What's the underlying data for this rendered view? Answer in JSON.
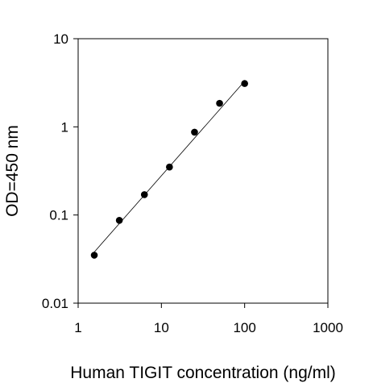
{
  "chart_data": {
    "type": "scatter",
    "title": "",
    "xlabel": "Human TIGIT concentration (ng/ml)",
    "ylabel": "OD=450 nm",
    "xscale": "log",
    "yscale": "log",
    "xlim": [
      1,
      1000
    ],
    "ylim": [
      0.01,
      10
    ],
    "x_ticks": [
      1,
      10,
      100,
      1000
    ],
    "x_tick_labels": [
      "1",
      "10",
      "100",
      "1000"
    ],
    "y_ticks": [
      0.01,
      0.1,
      1,
      10
    ],
    "y_tick_labels": [
      "0.01",
      "0.1",
      "1",
      "10"
    ],
    "grid": false,
    "legend": "none",
    "series": [
      {
        "x": [
          1.5625,
          3.125,
          6.25,
          12.5,
          25,
          50,
          100
        ],
        "y": [
          0.035,
          0.087,
          0.17,
          0.35,
          0.87,
          1.85,
          3.1
        ]
      }
    ],
    "fit_line": {
      "x": [
        1.5625,
        100
      ],
      "y": [
        0.038,
        3.3
      ]
    },
    "colors": {
      "marker": "#000000",
      "fit_line": "#000000",
      "axis": "#000000"
    }
  }
}
